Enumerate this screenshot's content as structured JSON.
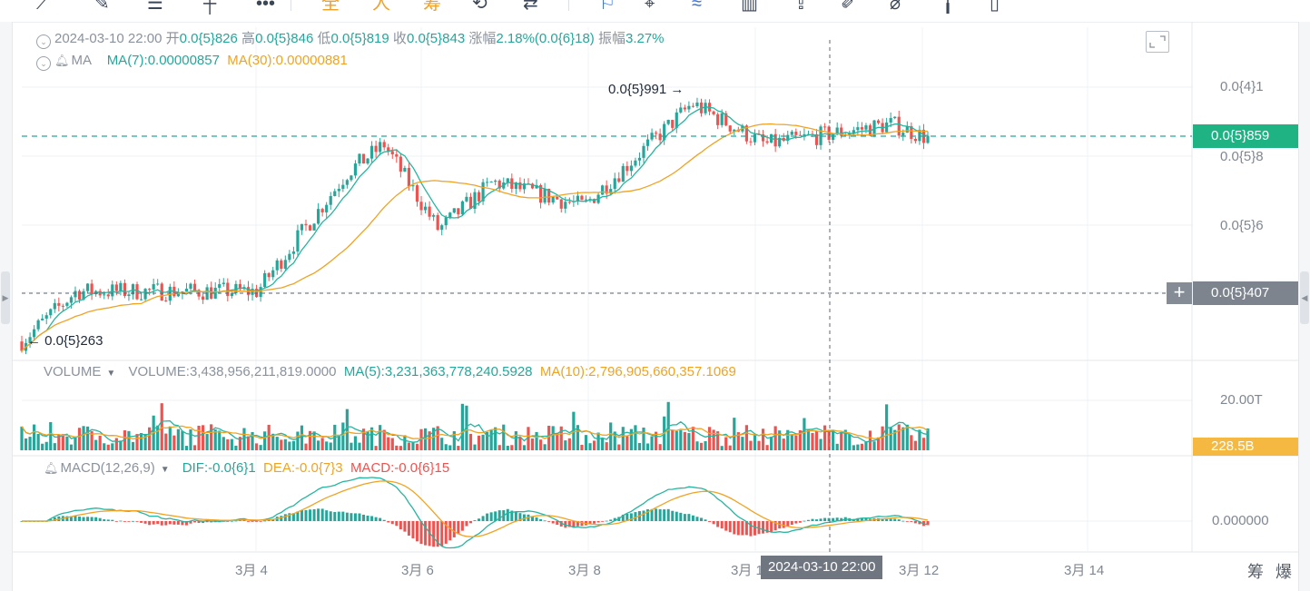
{
  "legend": {
    "date": "2024-03-10 22:00",
    "open_label": "开",
    "open": "0.0{5}826",
    "high_label": "高",
    "high": "0.0{5}846",
    "low_label": "低",
    "low": "0.0{5}819",
    "close_label": "收",
    "close": "0.0{5}843",
    "change_label": "涨幅",
    "change": "2.18%(0.0{6}18)",
    "amp_label": "振幅",
    "amp": "3.27%",
    "ma_name": "MA",
    "ma7": "MA(7):0.00000857",
    "ma30": "MA(30):0.00000881"
  },
  "volume": {
    "name": "VOLUME",
    "value": "VOLUME:3,438,956,211,819.0000",
    "ma5": "MA(5):3,231,363,778,240.5928",
    "ma10": "MA(10):2,796,905,660,357.1069"
  },
  "macd": {
    "name": "MACD(12,26,9)",
    "dif": "DIF:-0.0{6}1",
    "dea": "DEA:-0.0{7}3",
    "macd": "MACD:-0.0{6}15"
  },
  "annotations": {
    "high": "0.0{5}991 →",
    "low": "← 0.0{5}263"
  },
  "price_axis": {
    "t1": "0.0{4}1",
    "t2": "0.0{5}8",
    "t3": "0.0{5}6"
  },
  "last_price": "0.0{5}859",
  "crosshair_price": "0.0{5}407",
  "crosshair_time": "2024-03-10 22:00",
  "volume_axis": {
    "t1": "20.00T",
    "last": "228.5B"
  },
  "macd_axis": {
    "t1": "0.000000"
  },
  "time_axis": [
    "3月 4",
    "3月 6",
    "3月 8",
    "3月 1",
    "3月 12",
    "3月 14"
  ],
  "corner_labels": {
    "a": "筹",
    "b": "爆"
  },
  "toolbar": {
    "b1": "全",
    "b2": "人",
    "b3": "筹"
  },
  "colors": {
    "up": "#26a69a",
    "down": "#ef5350",
    "ma7": "#26b5a0",
    "ma30": "#f0a322",
    "last_price_bg": "#1fb384",
    "volume_tag_bg": "#f5b942"
  },
  "chart_data": {
    "type": "candlestick",
    "x_range": [
      "2024-03-02",
      "2024-03-12"
    ],
    "price_unit": "0.0{5} = ×1e-5",
    "close_path_points": [
      {
        "x": "3月 2 start",
        "y": 2.63e-06
      },
      {
        "x": "3月 3",
        "y": 4.1e-06
      },
      {
        "x": "3月 4",
        "y": 4.1e-06
      },
      {
        "x": "3月 5",
        "y": 7.6e-06
      },
      {
        "x": "3月 5 late",
        "y": 8.4e-06
      },
      {
        "x": "3月 6",
        "y": 5.9e-06
      },
      {
        "x": "3月 7",
        "y": 7.3e-06
      },
      {
        "x": "3月 8",
        "y": 6.6e-06
      },
      {
        "x": "3月 9",
        "y": 9.6e-06
      },
      {
        "x": "3月 10",
        "y": 8.4e-06
      },
      {
        "x": "3月 11",
        "y": 9e-06
      },
      {
        "x": "3月 12",
        "y": 8.59e-06
      }
    ],
    "high_marker": 9.91e-06,
    "low_marker": 2.63e-06,
    "series": [
      {
        "name": "MA(7)",
        "last": 8.57e-06
      },
      {
        "name": "MA(30)",
        "last": 8.81e-06
      }
    ],
    "volume": {
      "last": 3438956211819.0,
      "ma5": 3231363778240.593,
      "ma10": 2796905660357.107
    },
    "macd": {
      "dif": -1e-07,
      "dea": -3e-08,
      "macd": -1.5e-07
    }
  }
}
